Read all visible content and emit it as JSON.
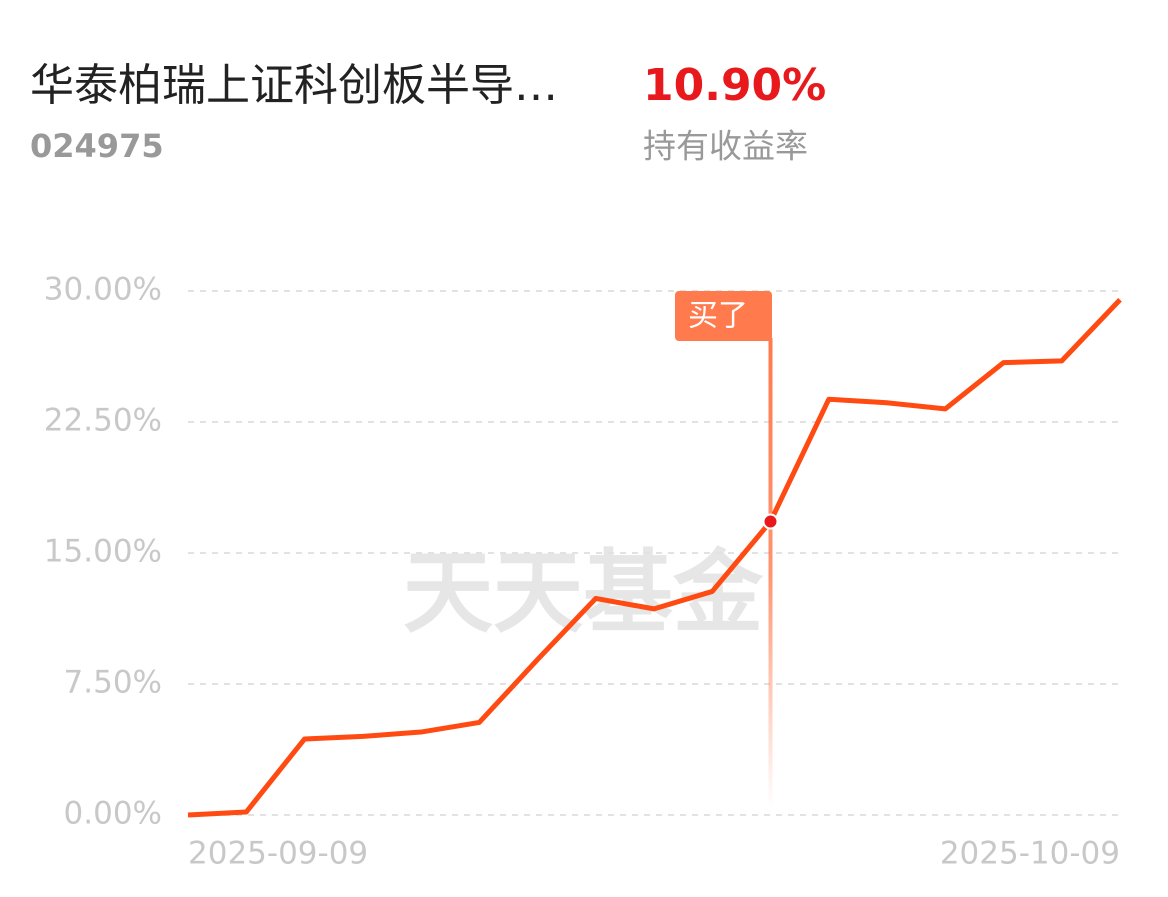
{
  "header": {
    "fund_name": "华泰柏瑞上证科创板半导…",
    "fund_code": "024975",
    "return_value": "10.90%",
    "return_label": "持有收益率"
  },
  "chart_data": {
    "type": "line",
    "categories": [
      "2025-09-09",
      null,
      null,
      null,
      null,
      null,
      null,
      null,
      null,
      null,
      null,
      null,
      null,
      null,
      null,
      null,
      "2025-10-09"
    ],
    "series": [
      {
        "color": "#ff4a12",
        "values": [
          0.0,
          0.17,
          4.35,
          4.5,
          4.75,
          5.3,
          8.9,
          12.4,
          11.8,
          12.8,
          16.8,
          23.8,
          23.6,
          23.25,
          25.9,
          26.0,
          29.5
        ]
      }
    ],
    "ylim": [
      0,
      30
    ],
    "yticks": [
      {
        "value": 0,
        "label": "0.00%"
      },
      {
        "value": 7.5,
        "label": "7.50%"
      },
      {
        "value": 15,
        "label": "15.00%"
      },
      {
        "value": 22.5,
        "label": "22.50%"
      },
      {
        "value": 30,
        "label": "30.00%"
      }
    ],
    "grid": true,
    "annotation": {
      "index": 10,
      "text": "买了",
      "color": "#ff7a4d"
    },
    "watermark": "天天基金"
  }
}
